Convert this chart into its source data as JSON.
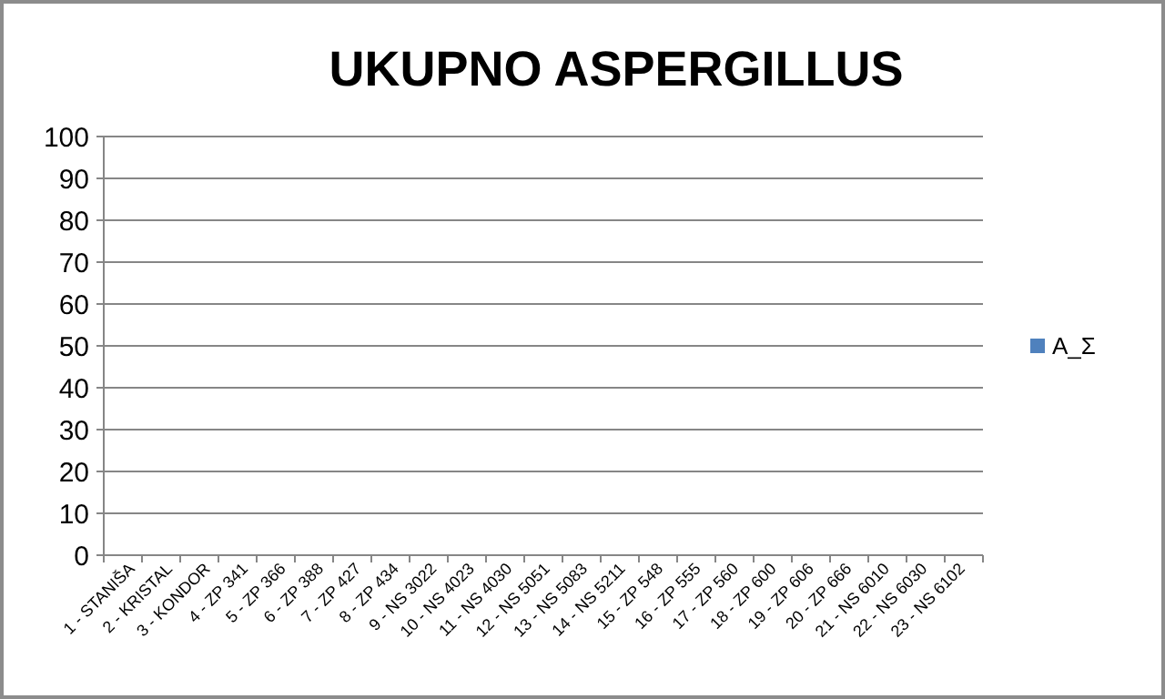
{
  "chart_data": {
    "type": "bar",
    "title": "UKUPNO ASPERGILLUS",
    "categories": [
      "1 - STANIŠA",
      "2 - KRISTAL",
      "3 - KONDOR",
      "4 - ZP 341",
      "5 - ZP 366",
      "6 - ZP 388",
      "7 - ZP 427",
      "8 - ZP 434",
      "9 - NS 3022",
      "10 - NS 4023",
      "11 - NS 4030",
      "12 - NS 5051",
      "13 - NS 5083",
      "14 - NS 5211",
      "15 - ZP 548",
      "16 - ZP 555",
      "17 - ZP 560",
      "18 - ZP 600",
      "19 - ZP 606",
      "20 - ZP 666",
      "21 - NS 6010",
      "22 - NS 6030",
      "23 - NS 6102"
    ],
    "series": [
      {
        "name": "A_Σ",
        "color": "#4f81bd",
        "values": [
          0,
          0,
          0,
          0,
          0,
          0,
          0,
          0,
          0,
          0,
          0,
          0,
          0,
          0,
          0,
          0,
          0,
          0,
          0,
          0,
          0,
          0,
          0
        ]
      }
    ],
    "ylim": [
      0,
      100
    ],
    "yticks": [
      0,
      10,
      20,
      30,
      40,
      50,
      60,
      70,
      80,
      90,
      100
    ],
    "grid": "y",
    "legend": "right"
  }
}
